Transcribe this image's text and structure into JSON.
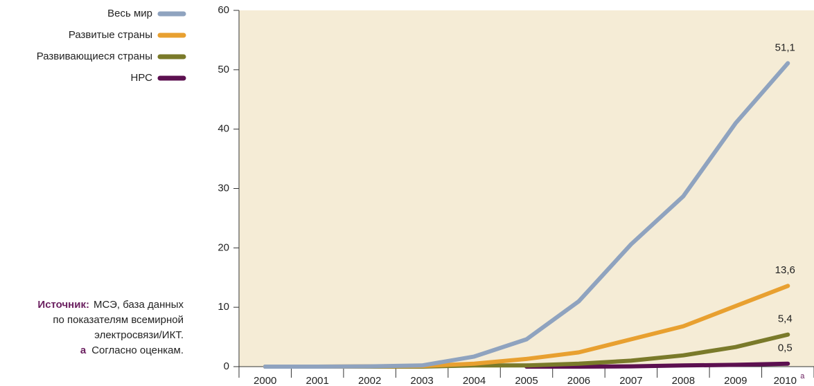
{
  "chart_data": {
    "type": "line",
    "categories": [
      "2000",
      "2001",
      "2002",
      "2003",
      "2004",
      "2005",
      "2006",
      "2007",
      "2008",
      "2009",
      "2010"
    ],
    "category_marker": "a",
    "series": [
      {
        "name": "Весь мир",
        "color": "#8fa3bf",
        "values": [
          0,
          0,
          0.05,
          0.2,
          1.7,
          4.6,
          11,
          20.6,
          28.7,
          41,
          51.1
        ],
        "value_labels": [
          null,
          null,
          null,
          null,
          null,
          null,
          null,
          null,
          null,
          null,
          "51,1"
        ]
      },
      {
        "name": "Развитые страны",
        "color": "#e8a030",
        "values": [
          0,
          0,
          0.05,
          0.1,
          0.5,
          1.3,
          2.4,
          4.6,
          6.8,
          10.2,
          13.6
        ],
        "value_labels": [
          null,
          null,
          null,
          null,
          null,
          null,
          null,
          null,
          null,
          null,
          "13,6"
        ]
      },
      {
        "name": "Развивающиеся страны",
        "color": "#7a7a2a",
        "values": [
          0,
          0,
          0,
          0,
          0.2,
          0.2,
          0.5,
          1,
          1.9,
          3.3,
          5.4
        ],
        "value_labels": [
          null,
          null,
          null,
          null,
          null,
          null,
          null,
          null,
          null,
          null,
          "5,4"
        ]
      },
      {
        "name": "НРС",
        "color": "#5c1050",
        "values": [
          null,
          null,
          null,
          null,
          null,
          0,
          0,
          0.05,
          0.2,
          0.3,
          0.5
        ],
        "value_labels": [
          null,
          null,
          null,
          null,
          null,
          null,
          null,
          null,
          null,
          null,
          "0,5"
        ]
      }
    ],
    "ylim": [
      0,
      60
    ],
    "yticks": [
      0,
      10,
      20,
      30,
      40,
      50,
      60
    ],
    "source_label": "Источник:",
    "source_lines": [
      "МСЭ, база данных",
      "по показателям всемирной",
      "электросвязи/ИКТ."
    ],
    "footnote": {
      "marker": "a",
      "text": "Согласно оценкам."
    }
  }
}
